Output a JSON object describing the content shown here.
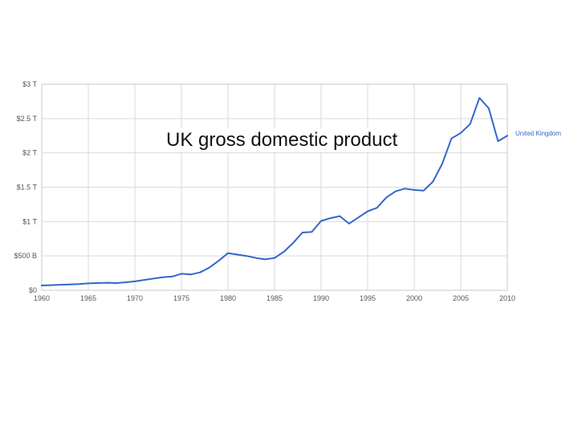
{
  "chart_data": {
    "type": "line",
    "title": "UK gross domestic product",
    "xlabel": "",
    "ylabel": "",
    "xlim": [
      1960,
      2010
    ],
    "ylim": [
      0,
      3
    ],
    "x_ticks": [
      "1960",
      "1965",
      "1970",
      "1975",
      "1980",
      "1985",
      "1990",
      "1995",
      "2000",
      "2005",
      "2010"
    ],
    "y_ticks": [
      {
        "value": 0,
        "label": "$0"
      },
      {
        "value": 0.5,
        "label": "$500 B"
      },
      {
        "value": 1,
        "label": "$1 T"
      },
      {
        "value": 1.5,
        "label": "$1.5 T"
      },
      {
        "value": 2,
        "label": "$2 T"
      },
      {
        "value": 2.5,
        "label": "$2.5 T"
      },
      {
        "value": 3,
        "label": "$3 T"
      }
    ],
    "y_unit": "trillion USD",
    "grid": true,
    "legend_position": "right",
    "series": [
      {
        "name": "United Kingdom",
        "color": "#3366cc",
        "x": [
          1960,
          1961,
          1962,
          1963,
          1964,
          1965,
          1966,
          1967,
          1968,
          1969,
          1970,
          1971,
          1972,
          1973,
          1974,
          1975,
          1976,
          1977,
          1978,
          1979,
          1980,
          1981,
          1982,
          1983,
          1984,
          1985,
          1986,
          1987,
          1988,
          1989,
          1990,
          1991,
          1992,
          1993,
          1994,
          1995,
          1996,
          1997,
          1998,
          1999,
          2000,
          2001,
          2002,
          2003,
          2004,
          2005,
          2006,
          2007,
          2008,
          2009,
          2010
        ],
        "values": [
          0.07,
          0.075,
          0.08,
          0.085,
          0.09,
          0.1,
          0.105,
          0.11,
          0.105,
          0.115,
          0.13,
          0.15,
          0.17,
          0.19,
          0.2,
          0.24,
          0.23,
          0.26,
          0.33,
          0.43,
          0.54,
          0.52,
          0.5,
          0.47,
          0.45,
          0.47,
          0.56,
          0.69,
          0.84,
          0.85,
          1.01,
          1.05,
          1.08,
          0.97,
          1.06,
          1.15,
          1.2,
          1.35,
          1.44,
          1.48,
          1.46,
          1.45,
          1.58,
          1.84,
          2.21,
          2.29,
          2.42,
          2.8,
          2.65,
          2.17,
          2.25
        ]
      }
    ]
  }
}
